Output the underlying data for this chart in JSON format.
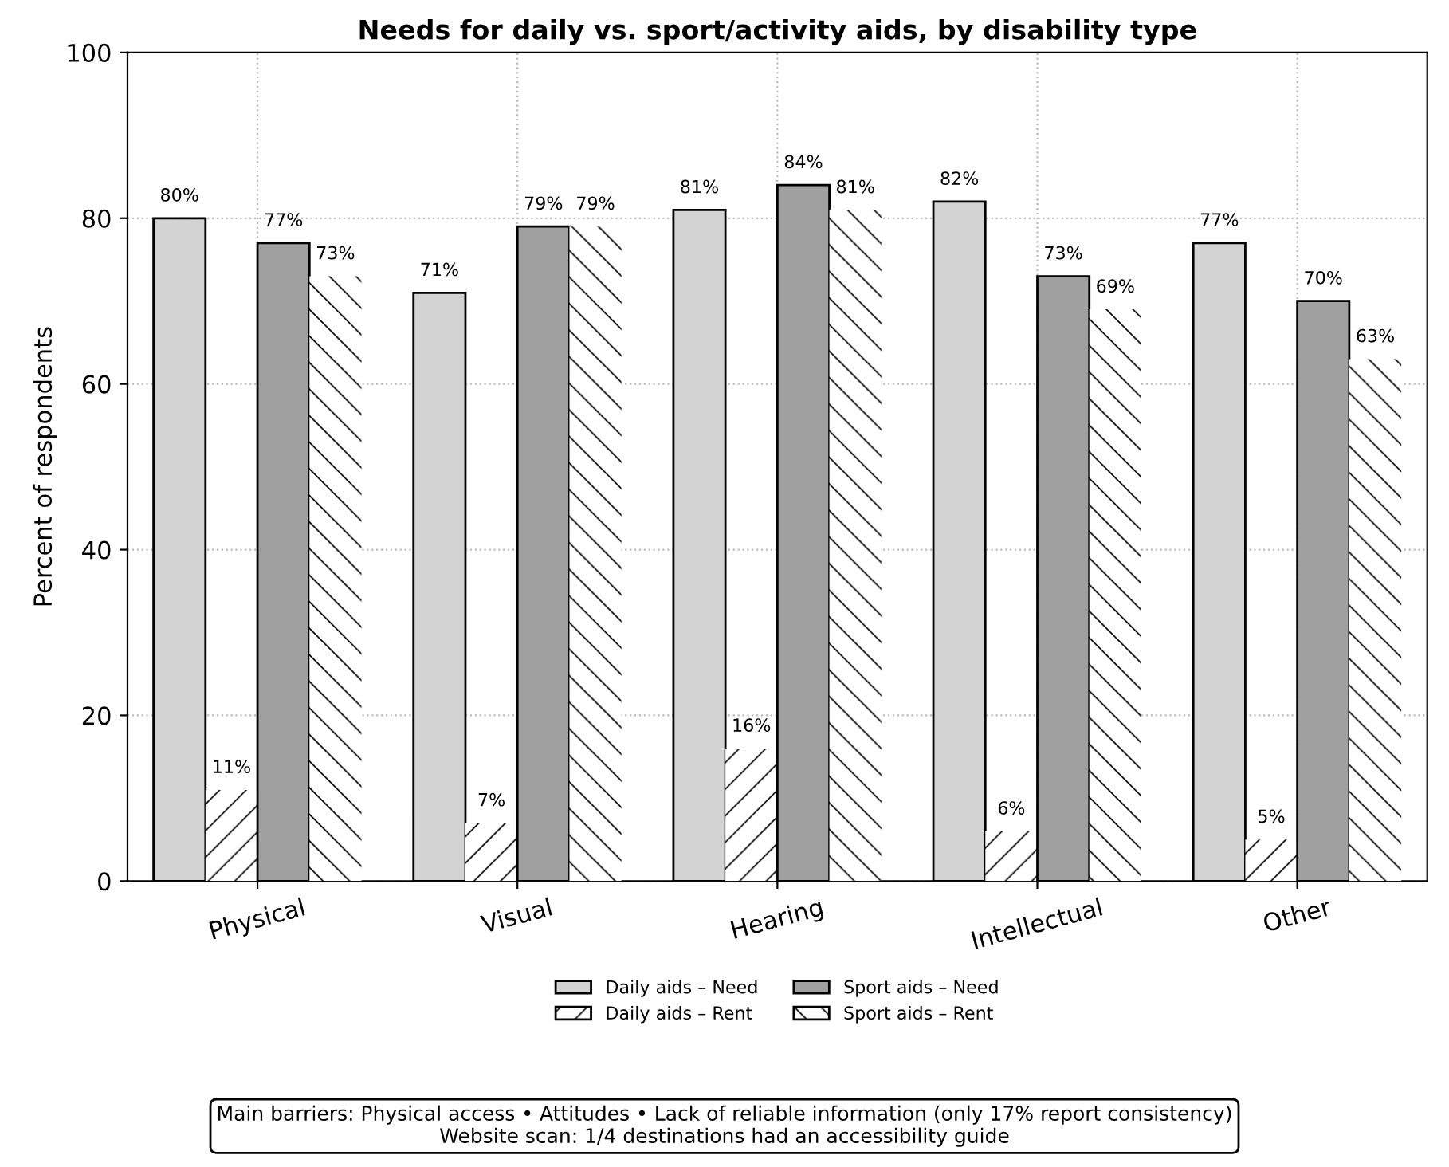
{
  "chart_data": {
    "type": "bar",
    "title": "Needs for daily vs. sport/activity aids, by disability type",
    "ylabel": "Percent of respondents",
    "categories": [
      "Physical",
      "Visual",
      "Hearing",
      "Intellectual",
      "Other"
    ],
    "series": [
      {
        "name": "Daily aids – Need",
        "color": "#d3d3d3",
        "values": [
          80,
          71,
          81,
          82,
          77
        ],
        "value_labels": [
          "80%",
          "71%",
          "81%",
          "82%",
          "77%"
        ]
      },
      {
        "name": "Daily aids – Rent",
        "color": "#ffffff",
        "values": [
          11,
          7,
          16,
          6,
          5
        ],
        "value_labels": [
          "11%",
          "7%",
          "16%",
          "6%",
          "5%"
        ]
      },
      {
        "name": "Sport aids – Need",
        "color": "#a0a0a0",
        "values": [
          77,
          79,
          84,
          73,
          70
        ],
        "value_labels": [
          "77%",
          "79%",
          "84%",
          "73%",
          "70%"
        ]
      },
      {
        "name": "Sport aids – Rent",
        "color": "#ffffff",
        "values": [
          73,
          79,
          81,
          69,
          63
        ],
        "value_labels": [
          "73%",
          "79%",
          "81%",
          "69%",
          "63%"
        ]
      }
    ],
    "ylim": [
      0,
      100
    ],
    "yticks": [
      0,
      20,
      40,
      60,
      80,
      100
    ],
    "grid": true,
    "legend": "bottom",
    "annotations": [
      "Main barriers: Physical access • Attitudes • Lack of reliable information (only 17% report consistency)",
      "Website scan: 1/4 destinations had an accessibility guide"
    ]
  }
}
